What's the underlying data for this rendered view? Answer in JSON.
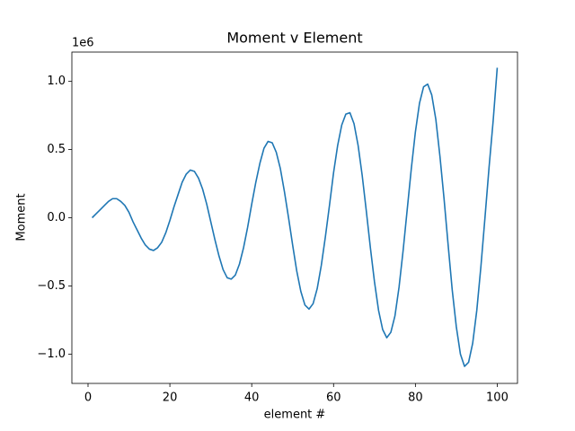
{
  "chart_data": {
    "type": "line",
    "title": "Moment v Element",
    "x_label": "element #",
    "y_label": "Moment",
    "y_offset_label": "1e6",
    "x": [
      1,
      2,
      3,
      4,
      5,
      6,
      7,
      8,
      9,
      10,
      11,
      12,
      13,
      14,
      15,
      16,
      17,
      18,
      19,
      20,
      21,
      22,
      23,
      24,
      25,
      26,
      27,
      28,
      29,
      30,
      31,
      32,
      33,
      34,
      35,
      36,
      37,
      38,
      39,
      40,
      41,
      42,
      43,
      44,
      45,
      46,
      47,
      48,
      49,
      50,
      51,
      52,
      53,
      54,
      55,
      56,
      57,
      58,
      59,
      60,
      61,
      62,
      63,
      64,
      65,
      66,
      67,
      68,
      69,
      70,
      71,
      72,
      73,
      74,
      75,
      76,
      77,
      78,
      79,
      80,
      81,
      82,
      83,
      84,
      85,
      86,
      87,
      88,
      89,
      90,
      91,
      92,
      93,
      94,
      95,
      96,
      97,
      98,
      99,
      100
    ],
    "series": [
      {
        "color": "#1f77b4",
        "values": [
          0,
          0.03,
          0.06,
          0.09,
          0.12,
          0.14,
          0.14,
          0.12,
          0.09,
          0.04,
          -0.03,
          -0.09,
          -0.15,
          -0.2,
          -0.23,
          -0.24,
          -0.22,
          -0.18,
          -0.11,
          -0.02,
          0.08,
          0.17,
          0.26,
          0.32,
          0.35,
          0.34,
          0.29,
          0.21,
          0.1,
          -0.03,
          -0.16,
          -0.28,
          -0.38,
          -0.44,
          -0.45,
          -0.42,
          -0.34,
          -0.22,
          -0.07,
          0.1,
          0.26,
          0.4,
          0.51,
          0.56,
          0.55,
          0.48,
          0.36,
          0.19,
          0,
          -0.2,
          -0.39,
          -0.54,
          -0.64,
          -0.67,
          -0.63,
          -0.52,
          -0.35,
          -0.14,
          0.09,
          0.33,
          0.53,
          0.68,
          0.76,
          0.77,
          0.69,
          0.53,
          0.31,
          0.05,
          -0.22,
          -0.47,
          -0.68,
          -0.82,
          -0.88,
          -0.84,
          -0.72,
          -0.51,
          -0.24,
          0.06,
          0.36,
          0.63,
          0.84,
          0.96,
          0.98,
          0.9,
          0.72,
          0.45,
          0.14,
          -0.2,
          -0.53,
          -0.8,
          -1.0,
          -1.09,
          -1.06,
          -0.92,
          -0.68,
          -0.36,
          0,
          0.37,
          0.71,
          1.1
        ]
      }
    ],
    "xlim": [
      -3.95,
      104.95
    ],
    "ylim": [
      -1.215,
      1.215
    ],
    "xticks": [
      0,
      20,
      40,
      60,
      80,
      100
    ],
    "yticks": [
      {
        "value": -1,
        "label": "−1.0"
      },
      {
        "value": -0.5,
        "label": "−0.5"
      },
      {
        "value": 0,
        "label": "0.0"
      },
      {
        "value": 0.5,
        "label": "0.5"
      },
      {
        "value": 1,
        "label": "1.0"
      }
    ]
  }
}
